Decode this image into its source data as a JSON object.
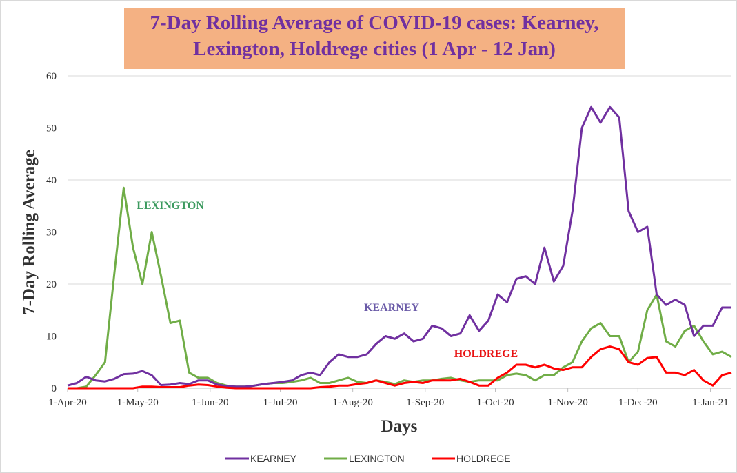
{
  "chart_data": {
    "type": "line",
    "title": [
      "7-Day Rolling Average of COVID-19 cases: Kearney,",
      "Lexington, Holdrege cities (1 Apr - 12 Jan)"
    ],
    "xlabel": "Days",
    "ylabel": "7-Day Rolling Average",
    "x": [
      "2020-04-01",
      "2020-04-05",
      "2020-04-09",
      "2020-04-13",
      "2020-04-17",
      "2020-04-21",
      "2020-04-25",
      "2020-04-29",
      "2020-05-03",
      "2020-05-07",
      "2020-05-11",
      "2020-05-15",
      "2020-05-19",
      "2020-05-23",
      "2020-05-27",
      "2020-05-31",
      "2020-06-04",
      "2020-06-08",
      "2020-06-12",
      "2020-06-16",
      "2020-06-20",
      "2020-06-24",
      "2020-06-28",
      "2020-07-02",
      "2020-07-06",
      "2020-07-10",
      "2020-07-14",
      "2020-07-18",
      "2020-07-22",
      "2020-07-26",
      "2020-07-30",
      "2020-08-03",
      "2020-08-07",
      "2020-08-11",
      "2020-08-15",
      "2020-08-19",
      "2020-08-23",
      "2020-08-27",
      "2020-08-31",
      "2020-09-04",
      "2020-09-08",
      "2020-09-12",
      "2020-09-16",
      "2020-09-20",
      "2020-09-24",
      "2020-09-28",
      "2020-10-02",
      "2020-10-06",
      "2020-10-10",
      "2020-10-14",
      "2020-10-18",
      "2020-10-22",
      "2020-10-26",
      "2020-10-30",
      "2020-11-03",
      "2020-11-07",
      "2020-11-11",
      "2020-11-15",
      "2020-11-19",
      "2020-11-23",
      "2020-11-27",
      "2020-12-01",
      "2020-12-05",
      "2020-12-09",
      "2020-12-13",
      "2020-12-17",
      "2020-12-21",
      "2020-12-25",
      "2020-12-29",
      "2021-01-02",
      "2021-01-06",
      "2021-01-10"
    ],
    "series": [
      {
        "name": "KEARNEY",
        "color": "#7030a0",
        "values": [
          0.5,
          1,
          2.2,
          1.5,
          1.3,
          1.8,
          2.7,
          2.8,
          3.3,
          2.5,
          0.6,
          0.7,
          1,
          0.8,
          1.5,
          1.5,
          0.7,
          0.4,
          0.3,
          0.3,
          0.5,
          0.8,
          1,
          1.2,
          1.5,
          2.5,
          3,
          2.5,
          5,
          6.5,
          6,
          6,
          6.5,
          8.5,
          10,
          9.5,
          10.5,
          9,
          9.5,
          12,
          11.5,
          10,
          10.5,
          14,
          11,
          13,
          18,
          16.5,
          21,
          21.5,
          20,
          27,
          20.5,
          23.5,
          34,
          50,
          54,
          51,
          54,
          52,
          34,
          30,
          31,
          18,
          16,
          17,
          16,
          10,
          12,
          12,
          15.5,
          15.5
        ]
      },
      {
        "name": "LEXINGTON",
        "color": "#70ad47",
        "values": [
          0,
          0,
          0.3,
          2.5,
          5,
          22,
          38.5,
          27,
          20,
          30,
          21.5,
          12.5,
          13,
          3,
          2,
          2,
          1,
          0.5,
          0.3,
          0.3,
          0.5,
          0.8,
          1,
          1,
          1.2,
          1.5,
          2,
          1,
          1,
          1.5,
          2,
          1.2,
          1,
          1.5,
          1.2,
          0.8,
          1.5,
          1.2,
          1.5,
          1.5,
          1.8,
          2,
          1.5,
          1.2,
          1.5,
          1.5,
          1.5,
          2.5,
          2.8,
          2.5,
          1.5,
          2.5,
          2.5,
          4,
          5,
          9,
          11.5,
          12.5,
          10,
          10,
          5,
          7,
          15,
          18,
          9,
          8,
          11,
          12,
          9,
          6.5,
          7,
          6
        ]
      },
      {
        "name": "HOLDREGE",
        "color": "#ff0000",
        "values": [
          0,
          0,
          0,
          0,
          0,
          0,
          0,
          0,
          0.3,
          0.3,
          0.2,
          0.2,
          0.2,
          0.5,
          0.7,
          0.6,
          0.3,
          0.1,
          0,
          0,
          0,
          0,
          0,
          0,
          0,
          0,
          0,
          0.2,
          0.3,
          0.5,
          0.5,
          0.8,
          1,
          1.5,
          1,
          0.5,
          1,
          1.2,
          1,
          1.5,
          1.5,
          1.5,
          1.8,
          1.2,
          0.5,
          0.5,
          2,
          3,
          4.5,
          4.5,
          4,
          4.5,
          3.8,
          3.5,
          4,
          4,
          6,
          7.5,
          8,
          7.5,
          5,
          4.5,
          5.8,
          6,
          3,
          3,
          2.5,
          3.5,
          1.5,
          0.5,
          2.5,
          3
        ]
      }
    ],
    "annotations": [
      {
        "text": "LEXINGTON",
        "color": "#3c9a5f"
      },
      {
        "text": "KEARNEY",
        "color": "#6b5ba8"
      },
      {
        "text": "HOLDREGE",
        "color": "#e81010"
      }
    ],
    "xlim": [
      "2020-04-01",
      "2021-01-10"
    ],
    "xticks": [
      {
        "value": "2020-04-01",
        "label": "1-Apr-20"
      },
      {
        "value": "2020-05-01",
        "label": "1-May-20"
      },
      {
        "value": "2020-06-01",
        "label": "1-Jun-20"
      },
      {
        "value": "2020-07-01",
        "label": "1-Jul-20"
      },
      {
        "value": "2020-08-01",
        "label": "1-Aug-20"
      },
      {
        "value": "2020-09-01",
        "label": "1-Sep-20"
      },
      {
        "value": "2020-10-01",
        "label": "1-Oct-20"
      },
      {
        "value": "2020-11-01",
        "label": "1-Nov-20"
      },
      {
        "value": "2020-12-01",
        "label": "1-Dec-20"
      },
      {
        "value": "2021-01-01",
        "label": "1-Jan-21"
      }
    ],
    "ylim": [
      0,
      60
    ],
    "yticks": [
      0,
      10,
      20,
      30,
      40,
      50,
      60
    ],
    "grid": true,
    "legend": "bottom"
  }
}
